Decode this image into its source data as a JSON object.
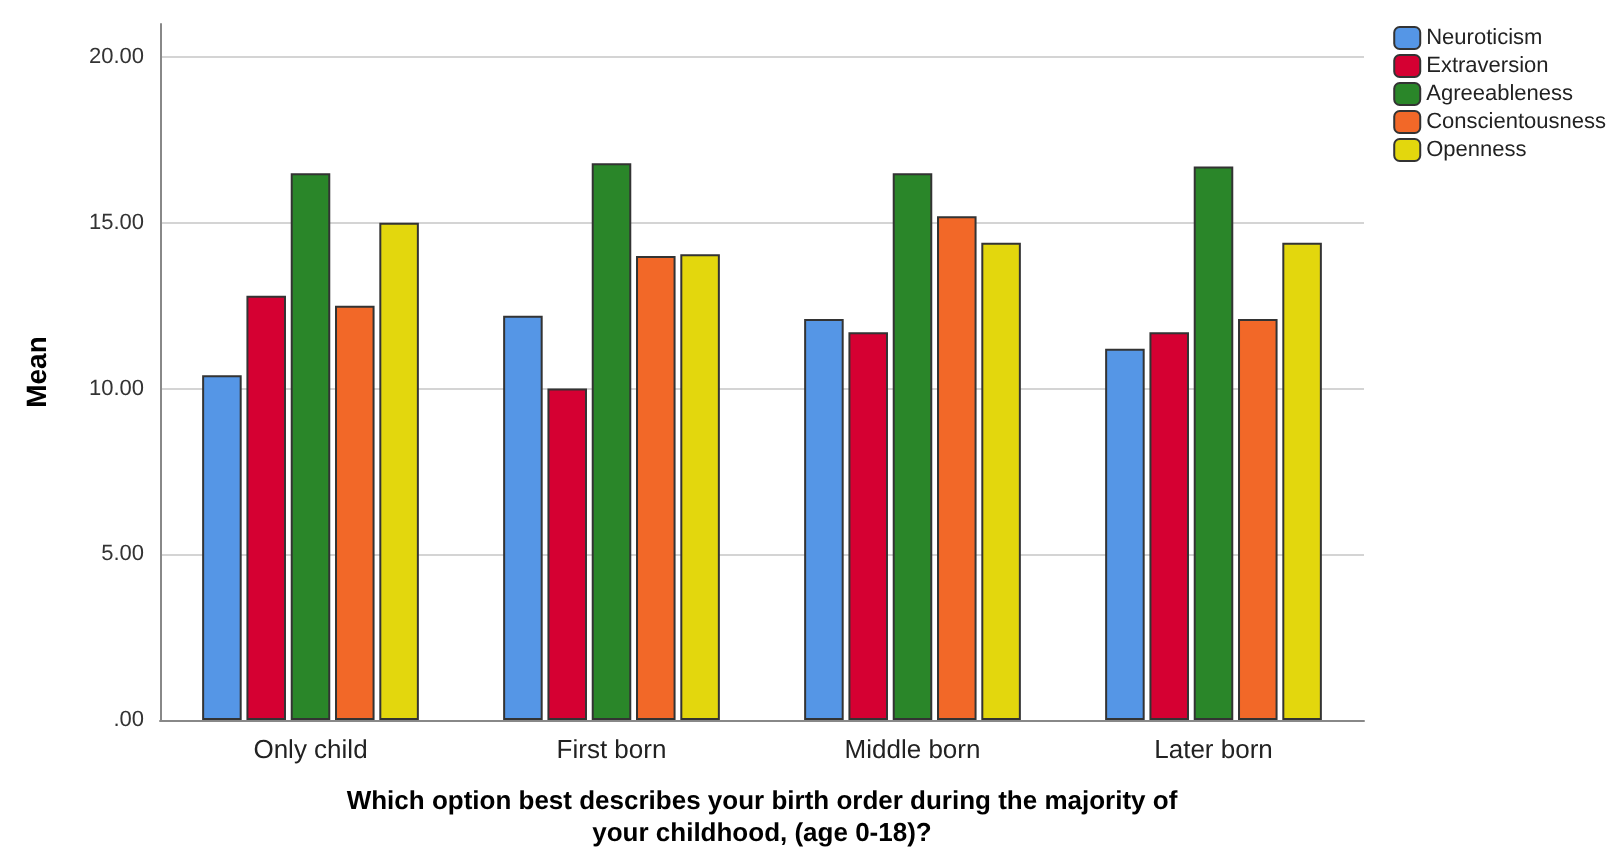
{
  "chart_data": {
    "type": "bar",
    "xlabel": "Which option best describes your birth order during the majority of\nyour childhood, (age 0-18)?",
    "ylabel": "Mean",
    "categories": [
      "Only child",
      "First born",
      "Middle born",
      "Later born"
    ],
    "series": [
      {
        "name": "Neuroticism",
        "color": "#5596e6",
        "values": [
          10.4,
          12.2,
          12.1,
          11.2
        ]
      },
      {
        "name": "Extraversion",
        "color": "#d50032",
        "values": [
          12.8,
          10.0,
          11.7,
          11.7
        ]
      },
      {
        "name": "Agreeableness",
        "color": "#2a8629",
        "values": [
          16.5,
          16.8,
          16.5,
          16.7
        ]
      },
      {
        "name": "Conscientousness",
        "color": "#f26828",
        "values": [
          12.5,
          14.0,
          15.2,
          12.1
        ]
      },
      {
        "name": "Openness",
        "color": "#e3d70d",
        "values": [
          15.0,
          14.05,
          14.4,
          14.4
        ]
      }
    ],
    "ylim": [
      0,
      21
    ],
    "yticks": [
      {
        "value": 0,
        "label": ".00"
      },
      {
        "value": 5,
        "label": "5.00"
      },
      {
        "value": 10,
        "label": "10.00"
      },
      {
        "value": 15,
        "label": "15.00"
      },
      {
        "value": 20,
        "label": "20.00"
      }
    ],
    "grid": "y",
    "legend": "top right"
  }
}
